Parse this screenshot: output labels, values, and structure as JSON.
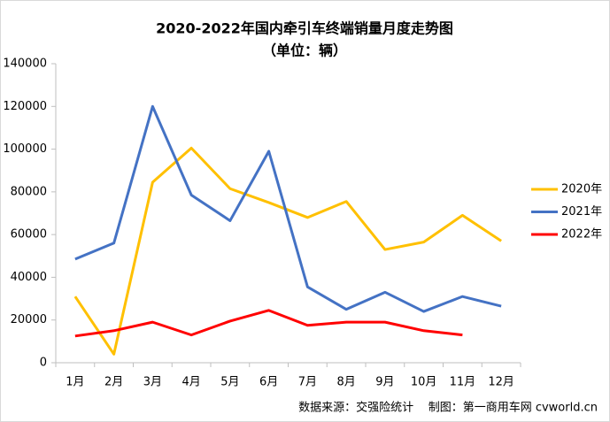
{
  "chart_data": {
    "type": "line",
    "title": "2020-2022年国内牵引车终端销量月度走势图",
    "subtitle": "（单位：辆）",
    "annotation": "数据来源：交强险统计    制图：第一商用车网 cvworld.cn",
    "categories": [
      "1月",
      "2月",
      "3月",
      "4月",
      "5月",
      "6月",
      "7月",
      "8月",
      "9月",
      "10月",
      "11月",
      "12月"
    ],
    "series": [
      {
        "name": "2020年",
        "color": "#FFC000",
        "values": [
          31000,
          4000,
          84500,
          100500,
          81500,
          75000,
          68000,
          75500,
          53000,
          56500,
          69000,
          57000
        ]
      },
      {
        "name": "2021年",
        "color": "#4472C4",
        "values": [
          48500,
          56000,
          120000,
          78500,
          66500,
          99000,
          35500,
          25000,
          33000,
          24000,
          31000,
          26500
        ]
      },
      {
        "name": "2022年",
        "color": "#FF0000",
        "values": [
          12500,
          15000,
          19000,
          13000,
          19500,
          24500,
          17500,
          19000,
          19000,
          15000,
          13000,
          null
        ]
      }
    ],
    "ylim": [
      0,
      140000
    ],
    "yticks": [
      0,
      20000,
      40000,
      60000,
      80000,
      100000,
      120000,
      140000
    ],
    "legend": "right"
  }
}
